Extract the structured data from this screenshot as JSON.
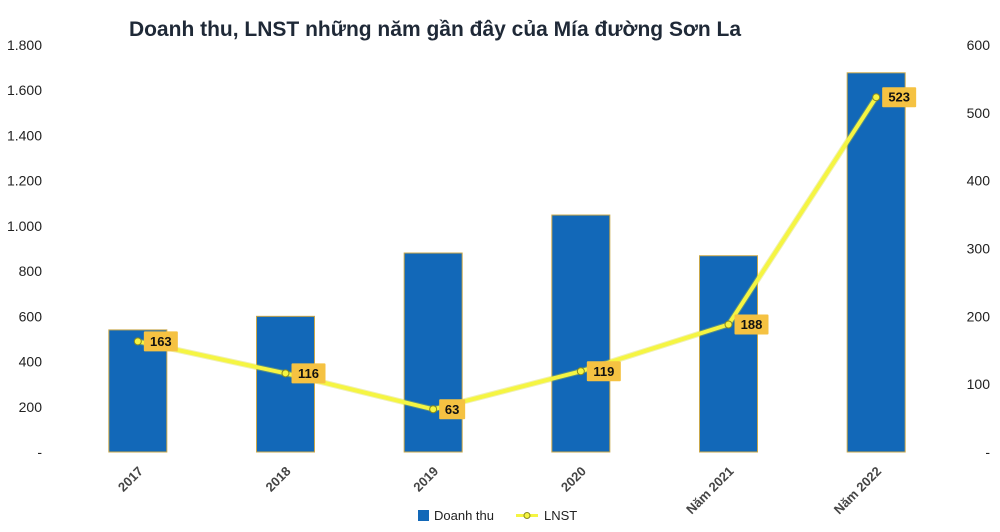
{
  "chart_data": {
    "type": "bar+line",
    "title": "Doanh thu, LNST những năm gần đây của Mía đường Sơn La",
    "categories": [
      "2017",
      "2018",
      "2019",
      "2020",
      "Năm 2021",
      "Năm 2022"
    ],
    "series": [
      {
        "name": "Doanh thu",
        "type": "bar",
        "axis": "left",
        "values": [
          540,
          600,
          880,
          1048,
          868,
          1677
        ]
      },
      {
        "name": "LNST",
        "type": "line",
        "axis": "right",
        "values": [
          163,
          116,
          63,
          119,
          188,
          523
        ]
      }
    ],
    "left_axis": {
      "ylim": [
        0,
        1800
      ],
      "ticks": [
        0,
        200,
        400,
        600,
        800,
        1000,
        1200,
        1400,
        1600,
        1800
      ],
      "tick_labels": [
        "-",
        "200",
        "400",
        "600",
        "800",
        "1.000",
        "1.200",
        "1.400",
        "1.600",
        "1.800"
      ]
    },
    "right_axis": {
      "ylim": [
        0,
        600
      ],
      "ticks": [
        0,
        100,
        200,
        300,
        400,
        500,
        600
      ],
      "tick_labels": [
        "-",
        "100",
        "200",
        "300",
        "400",
        "500",
        "600"
      ]
    },
    "data_labels": [
      "163",
      "116",
      "63",
      "119",
      "188",
      "523"
    ],
    "legend": {
      "position": "bottom",
      "items": [
        "Doanh thu",
        "LNST"
      ]
    },
    "grid": false,
    "colors": {
      "bar": "#1268b8",
      "bar_edge": "#c8a74a",
      "line": "#f5f542",
      "line_marker": "#f5f542",
      "label_bg": "#f5c242"
    }
  }
}
